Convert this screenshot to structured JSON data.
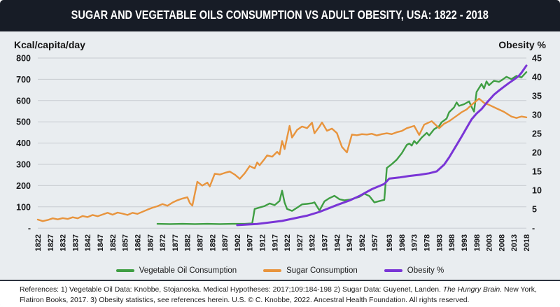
{
  "header": {
    "title": "SUGAR AND VEGETABLE OILS CONSUMPTION VS ADULT OBESITY, USA: 1822 - 2018"
  },
  "chart_data": {
    "type": "line",
    "title": "SUGAR AND VEGETABLE OILS CONSUMPTION VS ADULT OBESITY, USA: 1822 - 2018",
    "grid": "horizontal",
    "legend_position": "bottom",
    "left_axis": {
      "label": "Kcal/capita/day",
      "min": 0,
      "max": 800,
      "tick_step": 100,
      "ticks": [
        "800",
        "700",
        "600",
        "500",
        "400",
        "300",
        "200",
        "100",
        "-"
      ]
    },
    "right_axis": {
      "label": "Obesity %",
      "min": 0,
      "max": 45,
      "tick_step": 5,
      "ticks": [
        "45",
        "40",
        "35",
        "30",
        "25",
        "20",
        "15",
        "10",
        "5",
        "-"
      ]
    },
    "x_axis": {
      "range": [
        1822,
        2018
      ],
      "labels": [
        "1822",
        "1827",
        "1832",
        "1837",
        "1842",
        "1847",
        "1852",
        "1857",
        "1862",
        "1867",
        "1872",
        "1877",
        "1882",
        "1887",
        "1892",
        "1897",
        "1902",
        "1907",
        "1912",
        "1917",
        "1922",
        "1927",
        "1932",
        "1937",
        "1942",
        "1947",
        "1952",
        "1957",
        "1963",
        "1968",
        "1973",
        "1978",
        "1983",
        "1988",
        "1993",
        "1998",
        "2003",
        "2008",
        "2013",
        "2018"
      ]
    },
    "series": [
      {
        "name": "Vegetable Oil Consumption",
        "color": "#3f9e43",
        "axis": "left",
        "width": 2.4,
        "points": [
          [
            1870,
            20
          ],
          [
            1875,
            19
          ],
          [
            1880,
            20
          ],
          [
            1885,
            19
          ],
          [
            1890,
            20
          ],
          [
            1895,
            19
          ],
          [
            1900,
            20
          ],
          [
            1905,
            20
          ],
          [
            1908,
            22
          ],
          [
            1909,
            90
          ],
          [
            1911,
            97
          ],
          [
            1913,
            104
          ],
          [
            1915,
            116
          ],
          [
            1917,
            108
          ],
          [
            1919,
            128
          ],
          [
            1920,
            176
          ],
          [
            1921,
            120
          ],
          [
            1922,
            90
          ],
          [
            1924,
            81
          ],
          [
            1926,
            96
          ],
          [
            1928,
            112
          ],
          [
            1930,
            114
          ],
          [
            1932,
            117
          ],
          [
            1933,
            121
          ],
          [
            1935,
            83
          ],
          [
            1937,
            126
          ],
          [
            1939,
            141
          ],
          [
            1941,
            152
          ],
          [
            1943,
            136
          ],
          [
            1945,
            131
          ],
          [
            1947,
            134
          ],
          [
            1949,
            140
          ],
          [
            1951,
            147
          ],
          [
            1953,
            162
          ],
          [
            1955,
            151
          ],
          [
            1957,
            121
          ],
          [
            1959,
            127
          ],
          [
            1961,
            133
          ],
          [
            1962,
            283
          ],
          [
            1964,
            301
          ],
          [
            1966,
            322
          ],
          [
            1968,
            352
          ],
          [
            1970,
            391
          ],
          [
            1971,
            398
          ],
          [
            1972,
            388
          ],
          [
            1973,
            410
          ],
          [
            1974,
            397
          ],
          [
            1976,
            426
          ],
          [
            1978,
            448
          ],
          [
            1979,
            436
          ],
          [
            1981,
            465
          ],
          [
            1983,
            480
          ],
          [
            1984,
            498
          ],
          [
            1986,
            515
          ],
          [
            1987,
            545
          ],
          [
            1989,
            568
          ],
          [
            1990,
            591
          ],
          [
            1991,
            575
          ],
          [
            1993,
            583
          ],
          [
            1995,
            596
          ],
          [
            1996,
            570
          ],
          [
            1997,
            548
          ],
          [
            1998,
            640
          ],
          [
            2000,
            678
          ],
          [
            2001,
            657
          ],
          [
            2002,
            690
          ],
          [
            2003,
            672
          ],
          [
            2005,
            693
          ],
          [
            2007,
            688
          ],
          [
            2008,
            695
          ],
          [
            2010,
            712
          ],
          [
            2012,
            701
          ],
          [
            2014,
            716
          ],
          [
            2016,
            709
          ],
          [
            2018,
            734
          ]
        ]
      },
      {
        "name": "Sugar Consumption",
        "color": "#e8943d",
        "axis": "left",
        "width": 2.4,
        "points": [
          [
            1822,
            40
          ],
          [
            1824,
            33
          ],
          [
            1826,
            38
          ],
          [
            1828,
            46
          ],
          [
            1830,
            41
          ],
          [
            1832,
            47
          ],
          [
            1834,
            43
          ],
          [
            1836,
            51
          ],
          [
            1838,
            46
          ],
          [
            1840,
            57
          ],
          [
            1842,
            52
          ],
          [
            1844,
            62
          ],
          [
            1846,
            56
          ],
          [
            1848,
            64
          ],
          [
            1850,
            72
          ],
          [
            1852,
            63
          ],
          [
            1854,
            73
          ],
          [
            1856,
            68
          ],
          [
            1858,
            62
          ],
          [
            1860,
            72
          ],
          [
            1862,
            67
          ],
          [
            1864,
            77
          ],
          [
            1866,
            87
          ],
          [
            1868,
            96
          ],
          [
            1870,
            103
          ],
          [
            1872,
            113
          ],
          [
            1874,
            105
          ],
          [
            1876,
            120
          ],
          [
            1878,
            131
          ],
          [
            1880,
            139
          ],
          [
            1882,
            145
          ],
          [
            1883,
            118
          ],
          [
            1884,
            106
          ],
          [
            1886,
            218
          ],
          [
            1888,
            200
          ],
          [
            1890,
            214
          ],
          [
            1891,
            196
          ],
          [
            1893,
            256
          ],
          [
            1895,
            252
          ],
          [
            1897,
            260
          ],
          [
            1899,
            266
          ],
          [
            1901,
            252
          ],
          [
            1903,
            232
          ],
          [
            1905,
            258
          ],
          [
            1907,
            292
          ],
          [
            1909,
            281
          ],
          [
            1910,
            309
          ],
          [
            1911,
            296
          ],
          [
            1913,
            326
          ],
          [
            1914,
            342
          ],
          [
            1916,
            336
          ],
          [
            1918,
            359
          ],
          [
            1919,
            346
          ],
          [
            1920,
            410
          ],
          [
            1921,
            372
          ],
          [
            1923,
            481
          ],
          [
            1924,
            426
          ],
          [
            1926,
            462
          ],
          [
            1928,
            478
          ],
          [
            1930,
            470
          ],
          [
            1932,
            496
          ],
          [
            1933,
            446
          ],
          [
            1935,
            478
          ],
          [
            1936,
            497
          ],
          [
            1938,
            458
          ],
          [
            1940,
            468
          ],
          [
            1942,
            447
          ],
          [
            1944,
            382
          ],
          [
            1946,
            356
          ],
          [
            1948,
            440
          ],
          [
            1950,
            437
          ],
          [
            1952,
            442
          ],
          [
            1954,
            440
          ],
          [
            1956,
            444
          ],
          [
            1958,
            436
          ],
          [
            1960,
            442
          ],
          [
            1962,
            446
          ],
          [
            1964,
            442
          ],
          [
            1966,
            451
          ],
          [
            1968,
            457
          ],
          [
            1970,
            470
          ],
          [
            1973,
            481
          ],
          [
            1975,
            438
          ],
          [
            1977,
            487
          ],
          [
            1980,
            503
          ],
          [
            1983,
            470
          ],
          [
            1985,
            491
          ],
          [
            1987,
            503
          ],
          [
            1990,
            528
          ],
          [
            1992,
            545
          ],
          [
            1994,
            558
          ],
          [
            1996,
            580
          ],
          [
            1999,
            609
          ],
          [
            2001,
            589
          ],
          [
            2003,
            580
          ],
          [
            2006,
            563
          ],
          [
            2009,
            547
          ],
          [
            2012,
            525
          ],
          [
            2014,
            518
          ],
          [
            2016,
            525
          ],
          [
            2018,
            521
          ]
        ]
      },
      {
        "name": "Obesity %",
        "color": "#7a35d6",
        "axis": "right",
        "width": 3,
        "points": [
          [
            1902,
            0.8
          ],
          [
            1910,
            1.1
          ],
          [
            1920,
            1.9
          ],
          [
            1930,
            3.3
          ],
          [
            1935,
            4.3
          ],
          [
            1942,
            6.1
          ],
          [
            1947,
            7.3
          ],
          [
            1951,
            8.5
          ],
          [
            1956,
            10.3
          ],
          [
            1961,
            11.7
          ],
          [
            1963,
            13.1
          ],
          [
            1967,
            13.4
          ],
          [
            1971,
            13.8
          ],
          [
            1975,
            14.1
          ],
          [
            1979,
            14.5
          ],
          [
            1982,
            15.0
          ],
          [
            1985,
            16.8
          ],
          [
            1987,
            18.7
          ],
          [
            1990,
            22.0
          ],
          [
            1992,
            24.2
          ],
          [
            1994,
            26.5
          ],
          [
            1996,
            28.8
          ],
          [
            1998,
            30.3
          ],
          [
            2000,
            31.5
          ],
          [
            2002,
            33.1
          ],
          [
            2005,
            35.3
          ],
          [
            2007,
            36.4
          ],
          [
            2009,
            37.4
          ],
          [
            2011,
            38.4
          ],
          [
            2013,
            39.3
          ],
          [
            2015,
            40.3
          ],
          [
            2016,
            41.1
          ],
          [
            2018,
            43.0
          ]
        ]
      }
    ]
  },
  "legend": {
    "items": [
      {
        "label": "Vegetable Oil Consumption",
        "color": "#3f9e43"
      },
      {
        "label": "Sugar Consumption",
        "color": "#e8943d"
      },
      {
        "label": "Obesity %",
        "color": "#7a35d6"
      }
    ]
  },
  "footer": {
    "ref_pre": "References: 1) Vegetable Oil Data: Knobbe, Stojanoska. Medical Hypotheses: 2017;109:184-198  2) Sugar Data: Guyenet, Landen. ",
    "ref_italic": "The Hungry Brain.",
    "ref_post": " New York, Flatiron Books, 2017.  3) Obesity statistics, see references herein. U.S. © C. Knobbe, 2022. Ancestral Health Foundation. All rights reserved."
  }
}
